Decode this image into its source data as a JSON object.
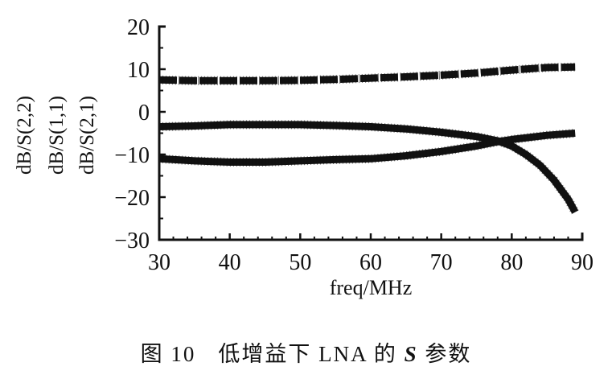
{
  "chart_data": {
    "type": "line",
    "title": "",
    "xlabel": "freq/MHz",
    "ylabel_lines": [
      "dB/S(2,2)",
      "dB/S(1,1)",
      "dB/S(2,1)"
    ],
    "xlim": [
      30,
      90
    ],
    "ylim": [
      -30,
      20
    ],
    "xticks": [
      30,
      40,
      50,
      60,
      70,
      80,
      90
    ],
    "yticks": [
      20,
      10,
      0,
      -10,
      -20,
      -30
    ],
    "grid": false,
    "legend": "none",
    "series": [
      {
        "name": "S(2,1)",
        "x": [
          30,
          35,
          40,
          45,
          50,
          55,
          60,
          65,
          70,
          75,
          80,
          85,
          89
        ],
        "y": [
          7.5,
          7.3,
          7.3,
          7.3,
          7.4,
          7.6,
          7.9,
          8.2,
          8.6,
          9.1,
          9.8,
          10.4,
          10.5
        ]
      },
      {
        "name": "S(1,1)",
        "x": [
          30,
          35,
          40,
          45,
          50,
          55,
          60,
          65,
          70,
          75,
          78,
          80,
          82,
          84,
          86,
          88,
          89
        ],
        "y": [
          -3.5,
          -3.3,
          -3.0,
          -3.0,
          -3.0,
          -3.2,
          -3.5,
          -4.0,
          -4.8,
          -5.8,
          -6.8,
          -8.0,
          -10.0,
          -12.5,
          -16.0,
          -20.5,
          -23.5
        ]
      },
      {
        "name": "S(2,2)",
        "x": [
          30,
          35,
          40,
          45,
          50,
          55,
          60,
          65,
          70,
          75,
          78,
          80,
          85,
          89
        ],
        "y": [
          -11.0,
          -11.5,
          -11.8,
          -11.8,
          -11.5,
          -11.2,
          -11.0,
          -10.3,
          -9.3,
          -8.0,
          -7.0,
          -6.5,
          -5.5,
          -5.0
        ]
      }
    ]
  },
  "caption": {
    "figure_no": "图 10",
    "text_before": "低增益下 LNA 的",
    "symbol": "S",
    "text_after": "参数"
  }
}
